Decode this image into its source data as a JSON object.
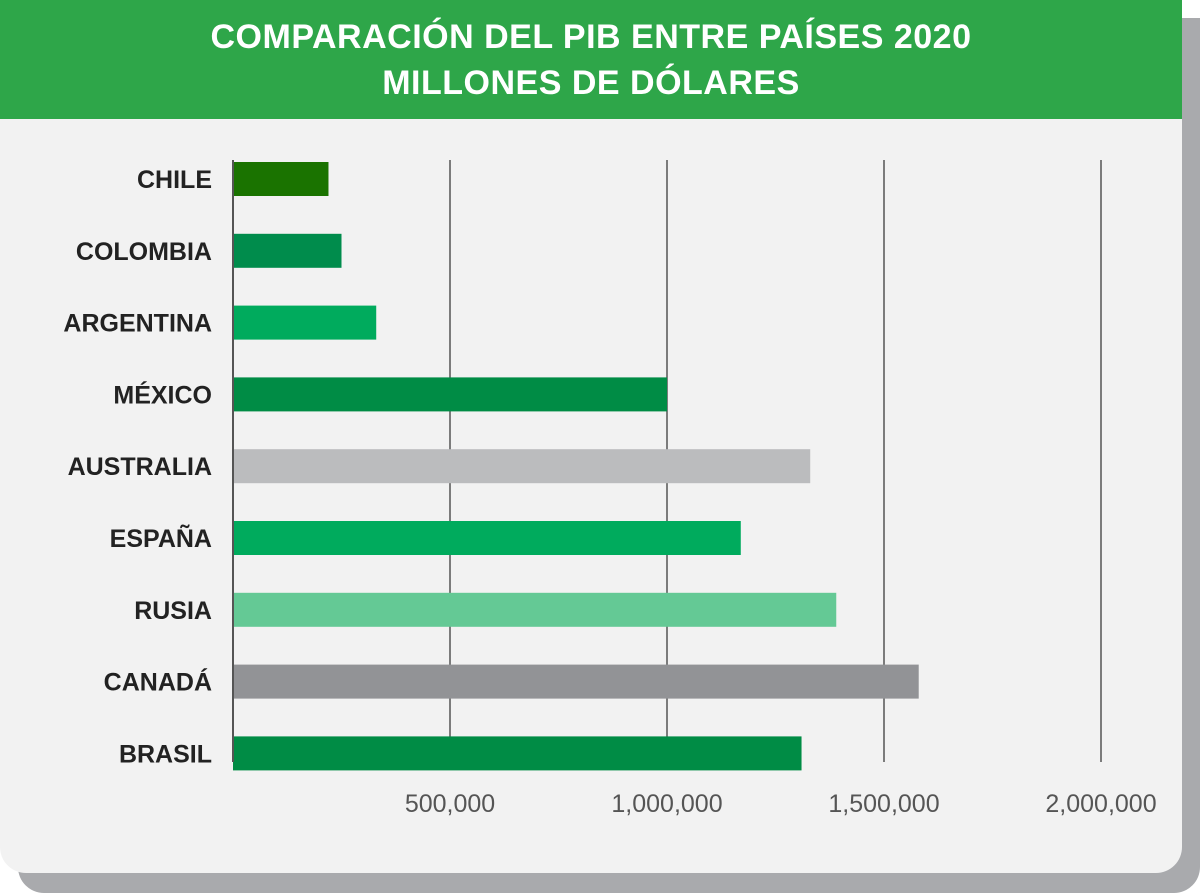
{
  "chart_data": {
    "type": "bar",
    "orientation": "horizontal",
    "title": "COMPARACIÓN DEL PIB ENTRE PAÍSES 2020",
    "subtitle": "MILLONES DE DÓLARES",
    "categories": [
      "CHILE",
      "COLOMBIA",
      "ARGENTINA",
      "MÉXICO",
      "AUSTRALIA",
      "ESPAÑA",
      "RUSIA",
      "CANADÁ",
      "BRASIL"
    ],
    "values": [
      220000,
      250000,
      330000,
      1000000,
      1330000,
      1170000,
      1390000,
      1580000,
      1310000
    ],
    "colors": [
      "#1a7300",
      "#008c4c",
      "#00ab5d",
      "#008c45",
      "#bbbcbe",
      "#00ab5d",
      "#64c995",
      "#929396",
      "#008c45"
    ],
    "xlim": [
      0,
      2000000
    ],
    "xticks": [
      500000,
      1000000,
      1500000,
      2000000
    ],
    "xtick_labels": [
      "500,000",
      "1,000,000",
      "1,500,000",
      "2,000,000"
    ],
    "grid": true,
    "xlabel": "",
    "ylabel": ""
  }
}
